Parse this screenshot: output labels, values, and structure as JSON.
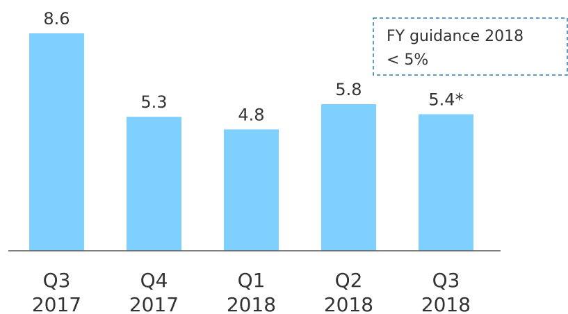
{
  "chart_data": {
    "type": "bar",
    "categories": [
      [
        "Q3",
        "2017"
      ],
      [
        "Q4",
        "2017"
      ],
      [
        "Q1",
        "2018"
      ],
      [
        "Q2",
        "2018"
      ],
      [
        "Q3",
        "2018"
      ]
    ],
    "values": [
      8.6,
      5.3,
      4.8,
      5.8,
      5.4
    ],
    "value_labels": [
      "8.6",
      "5.3",
      "4.8",
      "5.8",
      "5.4*"
    ],
    "color": "#80d0ff",
    "annotation": [
      "FY guidance 2018",
      "< 5%"
    ]
  }
}
